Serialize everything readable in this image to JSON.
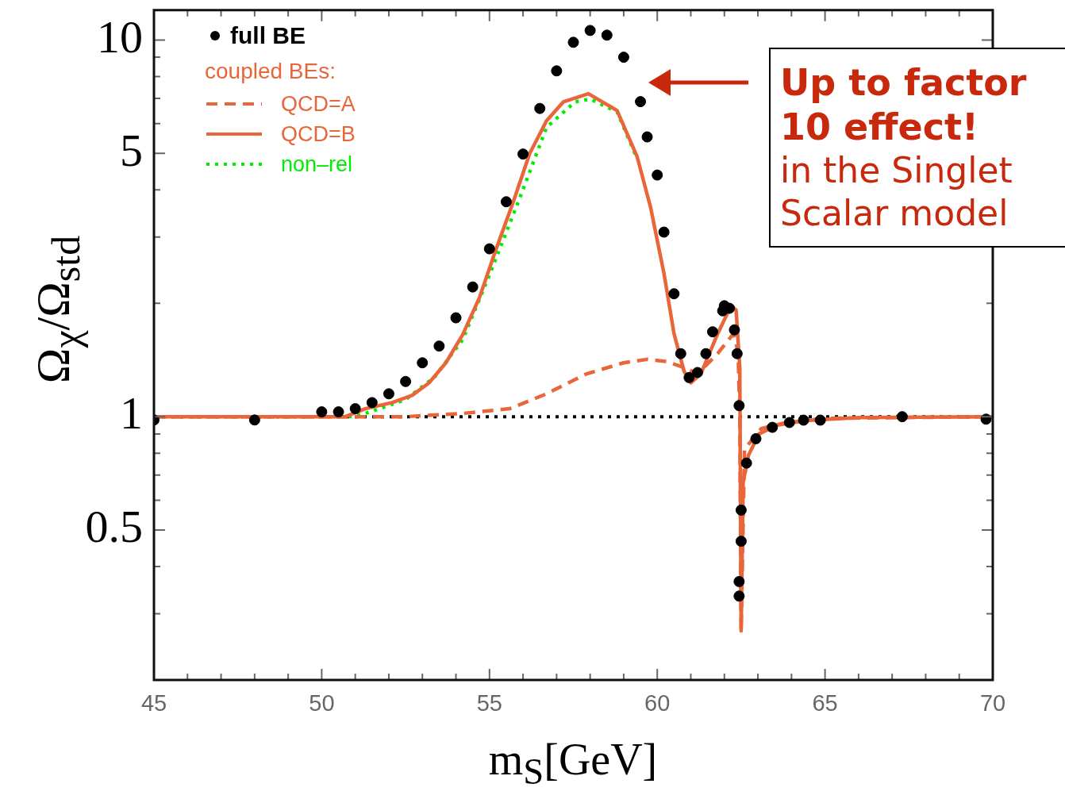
{
  "chart_data": {
    "type": "line",
    "xlabel": "m$_{S}$[GeV]",
    "ylabel": "Ω$_{χ}$/Ω$_{std}$",
    "legend_title": "coupled BEs:",
    "legend": "top left",
    "grid": false,
    "log": "y",
    "xlim": [
      45,
      70
    ],
    "ylim": [
      0.2,
      12
    ],
    "xticks": [
      45,
      {
        "value": 46,
        "label": null
      },
      {
        "value": 47,
        "label": null
      },
      {
        "value": 48,
        "label": null
      },
      {
        "value": 49,
        "label": null
      },
      50,
      {
        "value": 51,
        "label": null
      },
      {
        "value": 52,
        "label": null
      },
      {
        "value": 53,
        "label": null
      },
      {
        "value": 54,
        "label": null
      },
      55,
      {
        "value": 56,
        "label": null
      },
      {
        "value": 57,
        "label": null
      },
      {
        "value": 58,
        "label": null
      },
      {
        "value": 59,
        "label": null
      },
      60,
      {
        "value": 61,
        "label": null
      },
      {
        "value": 62,
        "label": null
      },
      {
        "value": 63,
        "label": null
      },
      {
        "value": 64,
        "label": null
      },
      65,
      {
        "value": 66,
        "label": null
      },
      {
        "value": 67,
        "label": null
      },
      {
        "value": 68,
        "label": null
      },
      {
        "value": 69,
        "label": null
      },
      70
    ],
    "yticks": [
      {
        "value": 0.3,
        "label": null
      },
      {
        "value": 0.4,
        "label": null
      },
      0.5,
      {
        "value": 0.6,
        "label": null
      },
      {
        "value": 0.7,
        "label": null
      },
      {
        "value": 0.8,
        "label": null
      },
      {
        "value": 0.9,
        "label": null
      },
      1,
      {
        "value": 2,
        "label": null
      },
      {
        "value": 3,
        "label": null
      },
      {
        "value": 4,
        "label": null
      },
      5,
      {
        "value": 6,
        "label": null
      },
      {
        "value": 7,
        "label": null
      },
      {
        "value": 8,
        "label": null
      },
      {
        "value": 9,
        "label": null
      },
      10
    ],
    "ref_lines": [
      {
        "axis": "y",
        "value": 1,
        "color": "#000000",
        "line_style": "dotted"
      }
    ],
    "annotations": [
      "Up to factor 10 effect!",
      "in the Singlet Scalar model"
    ],
    "series": [
      {
        "name": "full BE",
        "type": "scatter",
        "marker": "circle",
        "color": "#000000",
        "x": [
          45,
          48,
          50,
          50.5,
          51,
          51.5,
          52,
          52.5,
          53,
          53.5,
          54,
          54.5,
          55,
          55.5,
          56,
          56.5,
          57,
          57.5,
          58,
          58.5,
          59,
          59.5,
          59.7,
          60,
          60.2,
          60.5,
          60.7,
          60.95,
          61.2,
          61.45,
          61.65,
          61.95,
          62,
          62.15,
          62.3,
          62.38,
          62.44,
          62.5,
          62.5,
          62.44,
          62.44,
          62.66,
          62.94,
          63.43,
          63.94,
          64.36,
          64.86,
          67.3,
          69.8
        ],
        "values": [
          0.98,
          0.98,
          1.03,
          1.03,
          1.05,
          1.09,
          1.15,
          1.24,
          1.39,
          1.54,
          1.83,
          2.21,
          2.79,
          3.72,
          4.98,
          6.58,
          8.28,
          9.86,
          10.6,
          10.3,
          9.0,
          6.86,
          5.53,
          4.38,
          3.09,
          2.12,
          1.47,
          1.27,
          1.31,
          1.47,
          1.68,
          1.91,
          1.97,
          1.94,
          1.7,
          1.47,
          1.07,
          0.565,
          0.467,
          0.365,
          0.334,
          0.753,
          0.874,
          0.937,
          0.965,
          0.979,
          0.979,
          1.0,
          0.985
        ]
      },
      {
        "name": "QCD=A",
        "line_style": "dashed",
        "color": "#e8663a",
        "x": [
          45,
          52.5,
          54.2,
          55.6,
          56.7,
          57.9,
          59.0,
          59.7,
          60.3,
          60.8,
          61.2,
          61.8,
          62.27,
          62.41,
          62.46,
          62.5,
          62.6,
          63.1,
          63.73,
          65,
          70
        ],
        "values": [
          1,
          1,
          1.02,
          1.05,
          1.15,
          1.3,
          1.39,
          1.42,
          1.4,
          1.35,
          1.3,
          1.47,
          1.66,
          1.49,
          1.0,
          0.27,
          0.82,
          0.93,
          0.96,
          0.99,
          1
        ]
      },
      {
        "name": "QCD=B",
        "line_style": "solid",
        "color": "#e8663a",
        "x": [
          45,
          50.7,
          51.3,
          52.1,
          52.7,
          53.2,
          53.7,
          54.2,
          54.7,
          55.2,
          55.7,
          56.2,
          56.7,
          57.2,
          57.95,
          58.8,
          59.4,
          59.8,
          60.2,
          60.5,
          60.8,
          61.0,
          61.3,
          61.8,
          62.2,
          62.35,
          62.46,
          62.5,
          62.56,
          62.72,
          63.03,
          63.58,
          64.37,
          66,
          70
        ],
        "values": [
          1,
          1,
          1.05,
          1.09,
          1.14,
          1.23,
          1.39,
          1.65,
          2.07,
          2.79,
          3.7,
          5.0,
          6.1,
          6.85,
          7.2,
          6.5,
          4.9,
          3.6,
          2.4,
          1.66,
          1.32,
          1.23,
          1.3,
          1.66,
          1.97,
          1.92,
          1.35,
          0.27,
          0.67,
          0.79,
          0.9,
          0.95,
          0.976,
          0.995,
          1
        ]
      },
      {
        "name": "non–rel",
        "line_style": "dotted",
        "color": "#00ee00",
        "x": [
          50.8,
          51.3,
          52.5,
          53.35,
          54.2,
          55.0,
          55.9,
          56.7,
          57.55,
          58.0,
          58.8,
          59.4
        ],
        "values": [
          1,
          1.02,
          1.11,
          1.27,
          1.6,
          2.38,
          3.8,
          5.86,
          6.85,
          6.97,
          6.45,
          4.85
        ]
      }
    ]
  }
}
